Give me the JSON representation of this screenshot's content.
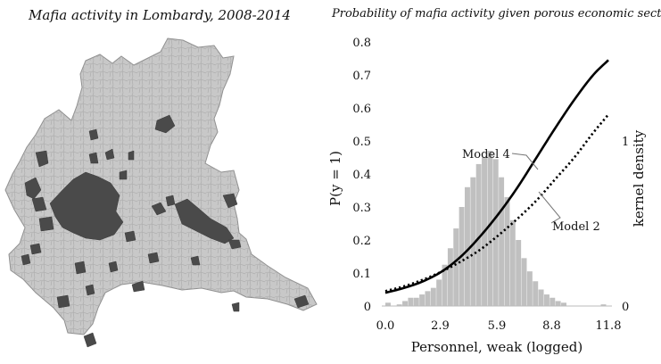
{
  "map_panel": {
    "title": "Mafia activity in Lombardy, 2008-2014",
    "colors": {
      "land": "#c8c8c8",
      "border": "#9a9a9a",
      "mafia": "#4a4a4a"
    }
  },
  "chart_data": {
    "type": "line",
    "title": "Probability of mafia activity given porous economic sectors",
    "xlabel": "Personnel, weak (logged)",
    "ylabel": "P(y = 1)",
    "ylabel_right": "kernel density",
    "xlim": [
      0,
      11.8
    ],
    "ylim": [
      0,
      0.8
    ],
    "xticks": [
      "0.0",
      "2.9",
      "5.9",
      "8.8",
      "11.8"
    ],
    "xtick_values": [
      0,
      2.9,
      5.9,
      8.8,
      11.8
    ],
    "yticks": [
      "0",
      "0.1",
      "0.2",
      "0.3",
      "0.4",
      "0.5",
      "0.6",
      "0.7",
      "0.8"
    ],
    "ytick_values": [
      0,
      0.1,
      0.2,
      0.3,
      0.4,
      0.5,
      0.6,
      0.7,
      0.8
    ],
    "right_ticks": [
      "0",
      "1"
    ],
    "right_tick_values": [
      0,
      1
    ],
    "series": [
      {
        "name": "Model 4",
        "style": "solid",
        "x": [
          0,
          1,
          2,
          3,
          4,
          5,
          6,
          7,
          8,
          9,
          10,
          11,
          11.8
        ],
        "y": [
          0.04,
          0.055,
          0.075,
          0.105,
          0.15,
          0.21,
          0.28,
          0.36,
          0.45,
          0.54,
          0.625,
          0.7,
          0.745
        ]
      },
      {
        "name": "Model 2",
        "style": "dotted",
        "x": [
          0,
          1,
          2,
          3,
          4,
          5,
          6,
          7,
          8,
          9,
          10,
          11,
          11.8
        ],
        "y": [
          0.045,
          0.06,
          0.08,
          0.105,
          0.135,
          0.17,
          0.215,
          0.265,
          0.32,
          0.385,
          0.45,
          0.525,
          0.58
        ]
      }
    ],
    "histogram": {
      "color": "#c0c0c0",
      "bin_width": 0.3,
      "bin_starts": [
        0.0,
        0.3,
        0.6,
        0.9,
        1.2,
        1.5,
        1.8,
        2.1,
        2.4,
        2.7,
        3.0,
        3.3,
        3.6,
        3.9,
        4.2,
        4.5,
        4.8,
        5.1,
        5.4,
        5.7,
        6.0,
        6.3,
        6.6,
        6.9,
        7.2,
        7.5,
        7.8,
        8.1,
        8.4,
        8.7,
        9.0,
        9.3,
        11.4
      ],
      "densities": [
        0.02,
        0.0,
        0.01,
        0.03,
        0.05,
        0.05,
        0.07,
        0.09,
        0.11,
        0.16,
        0.25,
        0.35,
        0.47,
        0.6,
        0.72,
        0.78,
        0.86,
        0.9,
        0.94,
        0.89,
        0.78,
        0.66,
        0.52,
        0.4,
        0.29,
        0.21,
        0.15,
        0.1,
        0.07,
        0.05,
        0.03,
        0.02,
        0.01
      ]
    },
    "annotations": [
      {
        "text": "Model 4",
        "series": "Model 4"
      },
      {
        "text": "Model 2",
        "series": "Model 2"
      }
    ]
  }
}
